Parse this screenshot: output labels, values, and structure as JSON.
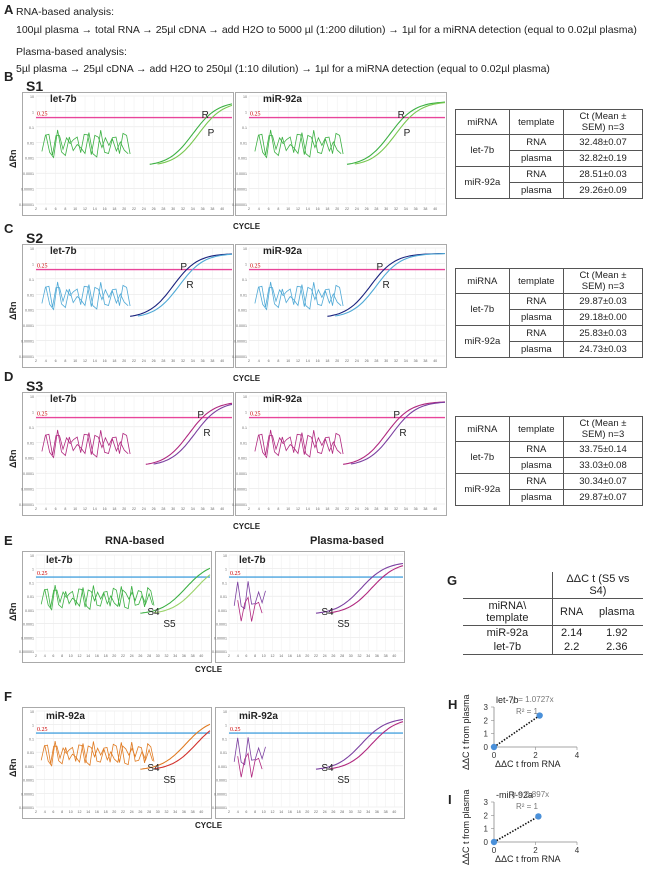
{
  "panelA": {
    "label": "A",
    "rna_title": "RNA-based analysis:",
    "rna_steps": "100µl plasma → total RNA → 25µl cDNA → add H2O to 5000 µl (1:200 dilution) → 1µl for a miRNA detection (equal to 0.02µl plasma)",
    "plasma_title": "Plasma-based analysis:",
    "plasma_steps": "5µl plasma → 25µl cDNA → add H2O to 250µl (1:10 dilution) → 1µl for a miRNA detection (equal to 0.02µl plasma)"
  },
  "axis": {
    "y_label": "ΔRn",
    "x_label": "CYCLE",
    "threshold_label": "0.25",
    "y_ticks": [
      "10",
      "1",
      "0.1",
      "0.01",
      "0.001",
      "0.0001",
      "0.00001",
      "0.000001"
    ]
  },
  "sections": [
    {
      "label": "B",
      "sample": "S1",
      "left_title": "let-7b",
      "right_title": "miR-92a",
      "curve_labels": [
        "R",
        "P"
      ],
      "table": {
        "headers": [
          "miRNA",
          "template",
          "Ct (Mean ± SEM) n=3"
        ],
        "rows": [
          {
            "mirna": "let-7b",
            "template": "RNA",
            "ct": "32.48±0.07"
          },
          {
            "mirna": "",
            "template": "plasma",
            "ct": "32.82±0.19"
          },
          {
            "mirna": "miR-92a",
            "template": "RNA",
            "ct": "28.51±0.03"
          },
          {
            "mirna": "",
            "template": "plasma",
            "ct": "29.26±0.09"
          }
        ]
      }
    },
    {
      "label": "C",
      "sample": "S2",
      "left_title": "let-7b",
      "right_title": "miR-92a",
      "curve_labels": [
        "P",
        "R"
      ],
      "table": {
        "headers": [
          "miRNA",
          "template",
          "Ct (Mean ± SEM) n=3"
        ],
        "rows": [
          {
            "mirna": "let-7b",
            "template": "RNA",
            "ct": "29.87±0.03"
          },
          {
            "mirna": "",
            "template": "plasma",
            "ct": "29.18±0.00"
          },
          {
            "mirna": "miR-92a",
            "template": "RNA",
            "ct": "25.83±0.03"
          },
          {
            "mirna": "",
            "template": "plasma",
            "ct": "24.73±0.03"
          }
        ]
      }
    },
    {
      "label": "D",
      "sample": "S3",
      "left_title": "let-7b",
      "right_title": "miR-92a",
      "curve_labels": [
        "P",
        "R"
      ],
      "table": {
        "headers": [
          "miRNA",
          "template",
          "Ct (Mean ± SEM) n=3"
        ],
        "rows": [
          {
            "mirna": "let-7b",
            "template": "RNA",
            "ct": "33.75±0.14"
          },
          {
            "mirna": "",
            "template": "plasma",
            "ct": "33.03±0.08"
          },
          {
            "mirna": "miR-92a",
            "template": "RNA",
            "ct": "30.34±0.07"
          },
          {
            "mirna": "",
            "template": "plasma",
            "ct": "29.87±0.07"
          }
        ]
      }
    }
  ],
  "panelE": {
    "label": "E",
    "left_header": "RNA-based",
    "right_header": "Plasma-based",
    "title": "let-7b",
    "s4": "S4",
    "s5": "S5"
  },
  "panelF": {
    "label": "F",
    "title": "miR-92a",
    "s4": "S4",
    "s5": "S5"
  },
  "panelG": {
    "label": "G",
    "header": "ΔΔC t (S5 vs S4)",
    "col0": "miRNA\\ template",
    "col1": "RNA",
    "col2": "plasma",
    "rows": [
      {
        "mirna": "miR-92a",
        "rna": "2.14",
        "plasma": "1.92"
      },
      {
        "mirna": "let-7b",
        "rna": "2.2",
        "plasma": "2.36"
      }
    ]
  },
  "panelH": {
    "label": "H",
    "title": "let-7b",
    "equation": "y = 1.0727x",
    "r2": "R² = 1",
    "ylabel": "ΔΔC t from plasma",
    "xlabel": "ΔΔC t from RNA"
  },
  "panelI": {
    "label": "I",
    "title": "-miR-92a",
    "equation": "y = 0.897x",
    "r2": "R² = 1",
    "ylabel": "ΔΔC t from plasma",
    "xlabel": "ΔΔC t from RNA"
  },
  "chart_data": [
    {
      "type": "scatter",
      "title": "let-7b",
      "x": [
        0,
        2.2
      ],
      "y": [
        0,
        2.36
      ],
      "xlim": [
        0,
        4
      ],
      "ylim": [
        0,
        3
      ],
      "xticks": [
        "0",
        "2",
        "4"
      ],
      "yticks": [
        "0",
        "1",
        "2",
        "3"
      ],
      "trend": "y = 1.0727x"
    },
    {
      "type": "scatter",
      "title": "miR-92a",
      "x": [
        0,
        2.14
      ],
      "y": [
        0,
        1.92
      ],
      "xlim": [
        0,
        4
      ],
      "ylim": [
        0,
        3
      ],
      "xticks": [
        "0",
        "2",
        "4"
      ],
      "yticks": [
        "0",
        "1",
        "2",
        "3"
      ],
      "trend": "y = 0.897x"
    }
  ],
  "colors": {
    "green": "#3cb043",
    "blue": "#1a237e",
    "lightblue": "#4fa9d6",
    "magenta": "#b0287f",
    "pink": "#e84d9a",
    "threshold_pink": "#e8459a",
    "threshold_blue": "#4aa3df",
    "orange": "#e07b22",
    "red": "#d2322d",
    "purple": "#7b3fa0",
    "dot": "#4a90d9"
  }
}
